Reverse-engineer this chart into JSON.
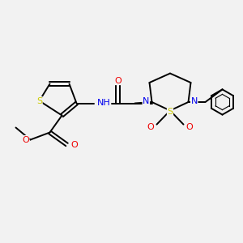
{
  "bg_color": "#f2f2f2",
  "atom_colors": {
    "S": "#cccc00",
    "N": "#0000ee",
    "O": "#ee0000",
    "C": "#000000",
    "H": "#555555"
  },
  "bond_color": "#000000",
  "line_width": 1.4,
  "font_size": 7.5,
  "figsize": [
    3.0,
    3.0
  ],
  "dpi": 100
}
